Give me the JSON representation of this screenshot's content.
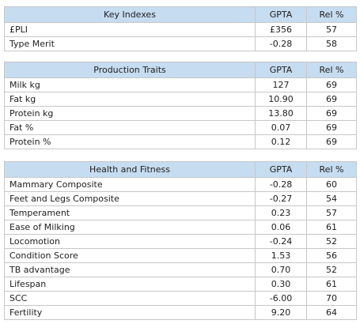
{
  "key_indexes": {
    "header": {
      "label": "Key Indexes",
      "gpta": "GPTA",
      "rel": "Rel %"
    },
    "rows": [
      {
        "name": "£PLI",
        "gpta": "£356",
        "rel": "57"
      },
      {
        "name": "Type Merit",
        "gpta": "-0.28",
        "rel": "58"
      }
    ]
  },
  "production_traits": {
    "header": {
      "label": "Production Traits",
      "gpta": "GPTA",
      "rel": "Rel %"
    },
    "rows": [
      {
        "name": "Milk kg",
        "gpta": "127",
        "rel": "69"
      },
      {
        "name": "Fat kg",
        "gpta": "10.90",
        "rel": "69"
      },
      {
        "name": "Protein kg",
        "gpta": "13.80",
        "rel": "69"
      },
      {
        "name": "Fat %",
        "gpta": "0.07",
        "rel": "69"
      },
      {
        "name": "Protein %",
        "gpta": "0.12",
        "rel": "69"
      }
    ]
  },
  "health_fitness": {
    "header": {
      "label": "Health and Fitness",
      "gpta": "GPTA",
      "rel": "Rel %"
    },
    "rows": [
      {
        "name": "Mammary Composite",
        "gpta": "-0.28",
        "rel": "60"
      },
      {
        "name": "Feet and Legs Composite",
        "gpta": "-0.27",
        "rel": "54"
      },
      {
        "name": "Temperament",
        "gpta": "0.23",
        "rel": "57"
      },
      {
        "name": "Ease of Milking",
        "gpta": "0.06",
        "rel": "61"
      },
      {
        "name": "Locomotion",
        "gpta": "-0.24",
        "rel": "52"
      },
      {
        "name": "Condition Score",
        "gpta": "1.53",
        "rel": "56"
      },
      {
        "name": "TB advantage",
        "gpta": "0.70",
        "rel": "52"
      },
      {
        "name": "Lifespan",
        "gpta": "0.30",
        "rel": "61"
      },
      {
        "name": "SCC",
        "gpta": "-6.00",
        "rel": "70"
      },
      {
        "name": "Fertility",
        "gpta": "9.20",
        "rel": "64"
      }
    ]
  },
  "colors": {
    "header_bg": "#c6dcf0",
    "border": "#c7c7c7"
  }
}
